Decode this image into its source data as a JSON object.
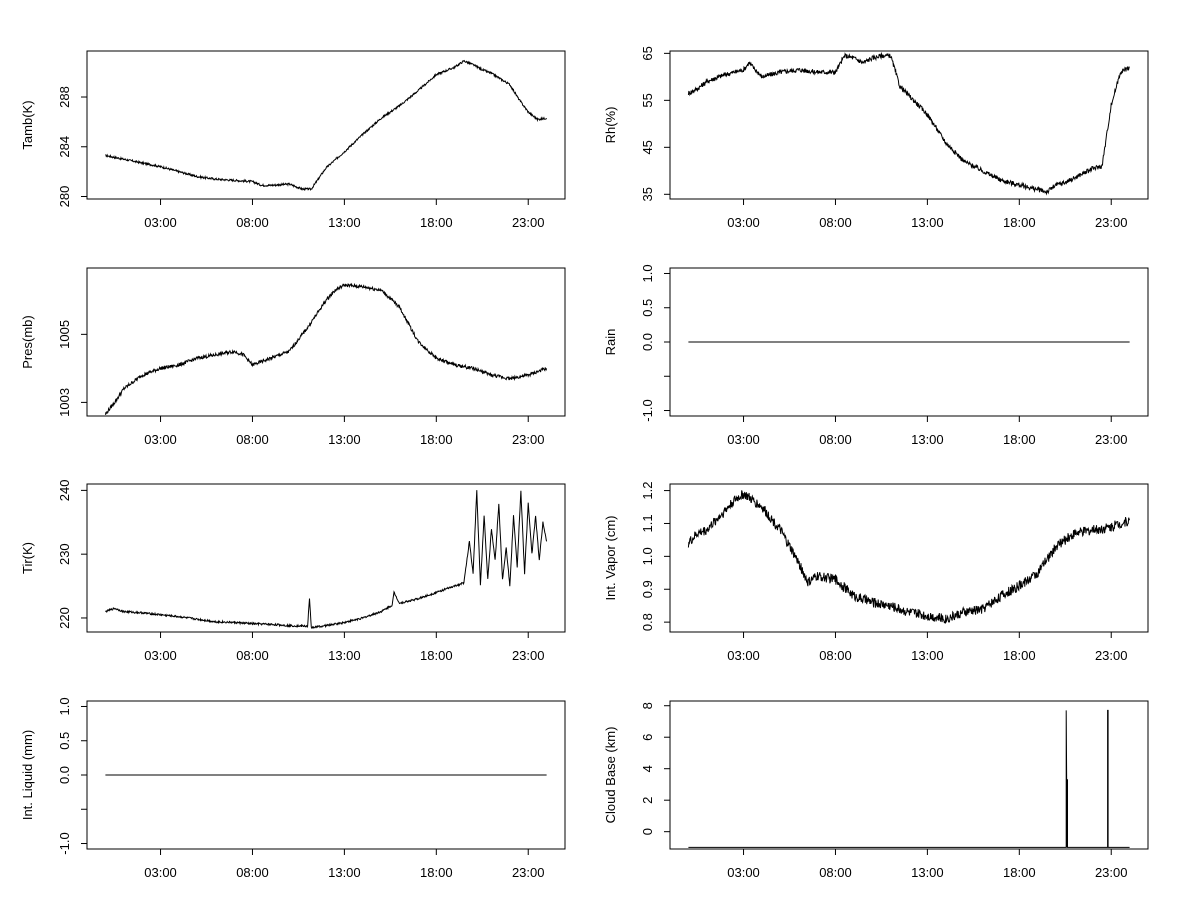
{
  "chart_data": [
    {
      "type": "line",
      "ylabel": "Tamb(K)",
      "x_ticks": [
        "03:00",
        "08:00",
        "13:00",
        "18:00",
        "23:00"
      ],
      "y_ticks": [
        "280",
        "284",
        "288"
      ],
      "xlim": [
        -1,
        25
      ],
      "ylim": [
        279.8,
        291.7
      ],
      "noise": 0.08,
      "series": [
        {
          "x": [
            0,
            1,
            2,
            3,
            4,
            5,
            6,
            7,
            8,
            8.5,
            9,
            10,
            10.7,
            11.2,
            12,
            13,
            14,
            15,
            16,
            17,
            18,
            19,
            19.5,
            20,
            20.5,
            21,
            22,
            22.5,
            23,
            23.5,
            24
          ],
          "y": [
            283.3,
            283.0,
            282.7,
            282.4,
            282.0,
            281.6,
            281.4,
            281.3,
            281.2,
            280.9,
            280.9,
            281.0,
            280.6,
            280.6,
            282.3,
            283.6,
            285.0,
            286.3,
            287.3,
            288.5,
            289.8,
            290.4,
            290.9,
            290.6,
            290.2,
            289.9,
            289.0,
            287.8,
            286.8,
            286.2,
            286.3
          ]
        }
      ]
    },
    {
      "type": "line",
      "ylabel": "Rh(%)",
      "x_ticks": [
        "03:00",
        "08:00",
        "13:00",
        "18:00",
        "23:00"
      ],
      "y_ticks": [
        "35",
        "45",
        "55",
        "65"
      ],
      "xlim": [
        -1,
        25
      ],
      "ylim": [
        34,
        65.5
      ],
      "noise": 0.5,
      "series": [
        {
          "x": [
            0,
            0.5,
            1,
            2,
            3,
            3.3,
            4,
            5,
            6,
            7,
            8,
            8.5,
            9,
            9.5,
            10,
            10.5,
            11,
            11.5,
            12,
            12.5,
            13,
            14,
            15,
            16,
            17,
            18,
            19,
            19.5,
            20,
            20.5,
            21,
            21.5,
            22,
            22.5,
            23,
            23.5,
            24
          ],
          "y": [
            56.5,
            57.5,
            59,
            60.5,
            61.5,
            63,
            60,
            61,
            61.5,
            61,
            61,
            64.5,
            64,
            63,
            64,
            64.5,
            64.5,
            58,
            56,
            54,
            52,
            46,
            42,
            40,
            38,
            37,
            36,
            35.5,
            37,
            37.5,
            38.5,
            39.5,
            40.5,
            41,
            54,
            61,
            62
          ]
        }
      ]
    },
    {
      "type": "line",
      "ylabel": "Pres(mb)",
      "x_ticks": [
        "03:00",
        "08:00",
        "13:00",
        "18:00",
        "23:00"
      ],
      "y_ticks": [
        "1003",
        "1005"
      ],
      "xlim": [
        -1,
        25
      ],
      "ylim": [
        1002.6,
        1006.95
      ],
      "noise": 0.05,
      "series": [
        {
          "x": [
            0,
            0.5,
            1,
            2,
            3,
            4,
            5,
            6,
            7,
            7.5,
            8,
            8.5,
            9,
            10,
            11,
            12,
            12.5,
            13,
            14,
            15,
            16,
            17,
            18,
            19,
            20,
            21,
            22,
            23,
            23.5,
            24
          ],
          "y": [
            1002.65,
            1003.0,
            1003.4,
            1003.8,
            1004.0,
            1004.1,
            1004.3,
            1004.4,
            1004.5,
            1004.4,
            1004.1,
            1004.2,
            1004.3,
            1004.5,
            1005.2,
            1006.0,
            1006.3,
            1006.45,
            1006.4,
            1006.3,
            1005.8,
            1004.8,
            1004.3,
            1004.1,
            1004.0,
            1003.8,
            1003.7,
            1003.8,
            1003.9,
            1004.0
          ]
        }
      ]
    },
    {
      "type": "line",
      "ylabel": "Rain",
      "x_ticks": [
        "03:00",
        "08:00",
        "13:00",
        "18:00",
        "23:00"
      ],
      "y_ticks": [
        "-1.0",
        "-0.5",
        "0.0",
        "0.5",
        "1.0"
      ],
      "y_tick_values": [
        -1,
        -0.5,
        0,
        0.5,
        1
      ],
      "y_tick_labels_visible": [
        true,
        false,
        true,
        true,
        true
      ],
      "xlim": [
        -1,
        25
      ],
      "ylim": [
        -1.08,
        1.08
      ],
      "noise": 0,
      "series": [
        {
          "x": [
            0,
            24
          ],
          "y": [
            0,
            0
          ]
        }
      ]
    },
    {
      "type": "line",
      "ylabel": "Tir(K)",
      "x_ticks": [
        "03:00",
        "08:00",
        "13:00",
        "18:00",
        "23:00"
      ],
      "y_ticks": [
        "220",
        "230",
        "240"
      ],
      "xlim": [
        -1,
        25
      ],
      "ylim": [
        217.8,
        241
      ],
      "noise": 0.15,
      "series": [
        {
          "x": [
            0,
            0.5,
            1,
            2,
            3,
            4,
            5,
            6,
            7,
            8,
            9,
            10,
            11,
            11.1,
            11.2,
            12,
            13,
            14,
            15,
            15.6,
            15.7,
            16,
            17,
            18,
            19,
            19.5,
            19.8,
            20.0,
            20.2,
            20.4,
            20.6,
            20.8,
            21.0,
            21.2,
            21.4,
            21.6,
            21.8,
            22.0,
            22.2,
            22.4,
            22.6,
            22.8,
            23.0,
            23.2,
            23.4,
            23.6,
            23.8,
            24
          ],
          "y": [
            221,
            221.5,
            221,
            220.8,
            220.5,
            220.2,
            219.8,
            219.4,
            219.3,
            219.1,
            219,
            218.8,
            218.7,
            223,
            218.5,
            218.8,
            219.3,
            220,
            221,
            222,
            224,
            222.3,
            223,
            224,
            225,
            225.5,
            232,
            227,
            240,
            225,
            236,
            226,
            234,
            229,
            238,
            226,
            231,
            225,
            236,
            228,
            240,
            227,
            238,
            230,
            236,
            229,
            235,
            232
          ]
        }
      ]
    },
    {
      "type": "line",
      "ylabel": "Int. Vapor (cm)",
      "x_ticks": [
        "03:00",
        "08:00",
        "13:00",
        "18:00",
        "23:00"
      ],
      "y_ticks": [
        "0.8",
        "0.9",
        "1.0",
        "1.1",
        "1.2"
      ],
      "xlim": [
        -1,
        25
      ],
      "ylim": [
        0.77,
        1.22
      ],
      "noise": 0.015,
      "series": [
        {
          "x": [
            0,
            0.5,
            1,
            2,
            2.5,
            3,
            4,
            5,
            6,
            6.5,
            7,
            8,
            9,
            10,
            11,
            12,
            13,
            14,
            15,
            16,
            17,
            18,
            19,
            20,
            21,
            22,
            23,
            23.5,
            24
          ],
          "y": [
            1.04,
            1.07,
            1.08,
            1.14,
            1.17,
            1.19,
            1.15,
            1.08,
            0.98,
            0.92,
            0.94,
            0.93,
            0.88,
            0.86,
            0.85,
            0.83,
            0.82,
            0.81,
            0.83,
            0.84,
            0.88,
            0.91,
            0.95,
            1.03,
            1.07,
            1.08,
            1.09,
            1.1,
            1.11
          ]
        }
      ]
    },
    {
      "type": "line",
      "ylabel": "Int. Liquid (mm)",
      "x_ticks": [
        "03:00",
        "08:00",
        "13:00",
        "18:00",
        "23:00"
      ],
      "y_ticks": [
        "-1.0",
        "-0.5",
        "0.0",
        "0.5",
        "1.0"
      ],
      "y_tick_values": [
        -1,
        -0.5,
        0,
        0.5,
        1
      ],
      "y_tick_labels_visible": [
        true,
        false,
        true,
        true,
        true
      ],
      "xlim": [
        -1,
        25
      ],
      "ylim": [
        -1.08,
        1.08
      ],
      "noise": 0,
      "series": [
        {
          "x": [
            0,
            24
          ],
          "y": [
            0,
            0
          ]
        }
      ]
    },
    {
      "type": "line",
      "ylabel": "Cloud Base (km)",
      "x_ticks": [
        "03:00",
        "08:00",
        "13:00",
        "18:00",
        "23:00"
      ],
      "y_ticks": [
        "0",
        "2",
        "4",
        "6",
        "8"
      ],
      "xlim": [
        -1,
        25
      ],
      "ylim": [
        -1.1,
        8.3
      ],
      "noise": 0,
      "series": [
        {
          "x": [
            0,
            20.55,
            20.55,
            20.6,
            20.6,
            20.62,
            20.62,
            22.8,
            22.8,
            22.83,
            22.83,
            24
          ],
          "y": [
            -1,
            -1,
            7.7,
            -1,
            3.3,
            3.3,
            -1,
            -1,
            7.7,
            7.7,
            -1,
            -1
          ]
        }
      ]
    }
  ]
}
